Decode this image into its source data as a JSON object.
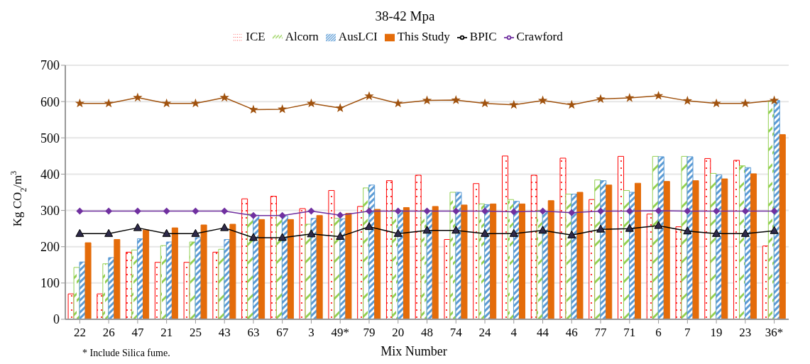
{
  "chart_data": {
    "type": "bar",
    "title": "38-42 Mpa",
    "xlabel": "Mix Number",
    "ylabel": "Kg CO$_{2}$/m$^{3}$",
    "categories": [
      "22",
      "26",
      "47",
      "21",
      "25",
      "43",
      "63",
      "67",
      "3",
      "49*",
      "79",
      "20",
      "48",
      "74",
      "24",
      "4",
      "44",
      "46",
      "77",
      "71",
      "6",
      "7",
      "19",
      "23",
      "36*"
    ],
    "series": [
      {
        "name": "ICE",
        "color": "#ff0000",
        "values": [
          70,
          70,
          185,
          157,
          157,
          185,
          332,
          339,
          305,
          355,
          311,
          382,
          397,
          220,
          374,
          450,
          397,
          444,
          330,
          449,
          290,
          255,
          443,
          438,
          202
        ]
      },
      {
        "name": "Alcorn",
        "color": "#92d050",
        "values": [
          143,
          153,
          191,
          203,
          213,
          193,
          290,
          287,
          262,
          278,
          362,
          300,
          300,
          350,
          318,
          330,
          300,
          345,
          384,
          355,
          449,
          449,
          402,
          423,
          600
        ]
      },
      {
        "name": "AusLCI",
        "color": "#5b9bd5",
        "values": [
          158,
          170,
          222,
          213,
          225,
          220,
          287,
          285,
          278,
          277,
          370,
          300,
          300,
          350,
          316,
          325,
          297,
          345,
          382,
          350,
          448,
          448,
          398,
          418,
          603
        ]
      },
      {
        "name": "This Study",
        "color": "#e46c0a",
        "values": [
          211,
          220,
          246,
          252,
          260,
          262,
          275,
          275,
          286,
          292,
          303,
          308,
          311,
          315,
          318,
          318,
          327,
          350,
          370,
          375,
          380,
          382,
          387,
          401,
          509
        ]
      },
      {
        "name": "BPIC",
        "type": "line",
        "marker": "triangle",
        "color": "#000000",
        "values": [
          236,
          236,
          252,
          236,
          236,
          252,
          225,
          225,
          235,
          228,
          255,
          236,
          245,
          245,
          236,
          236,
          245,
          232,
          248,
          250,
          258,
          243,
          236,
          236,
          244
        ]
      },
      {
        "type": "line",
        "marker": "star",
        "color": "#a0520e",
        "values": [
          595,
          595,
          611,
          595,
          595,
          611,
          578,
          579,
          595,
          582,
          615,
          595,
          603,
          604,
          595,
          591,
          603,
          591,
          607,
          610,
          616,
          602,
          595,
          595,
          603
        ]
      },
      {
        "name": "Crawford",
        "type": "line",
        "marker": "diamond",
        "color": "#7030a0",
        "values": [
          298,
          298,
          298,
          298,
          298,
          298,
          286,
          286,
          298,
          287,
          298,
          298,
          298,
          298,
          298,
          296,
          298,
          294,
          298,
          298,
          299,
          298,
          298,
          298,
          298
        ]
      }
    ],
    "ylim": [
      0,
      700
    ],
    "yticks": [
      0,
      100,
      200,
      300,
      400,
      500,
      600,
      700
    ],
    "grid": "y",
    "legend": "top",
    "annotations": [
      "* Include Silica fume."
    ]
  }
}
